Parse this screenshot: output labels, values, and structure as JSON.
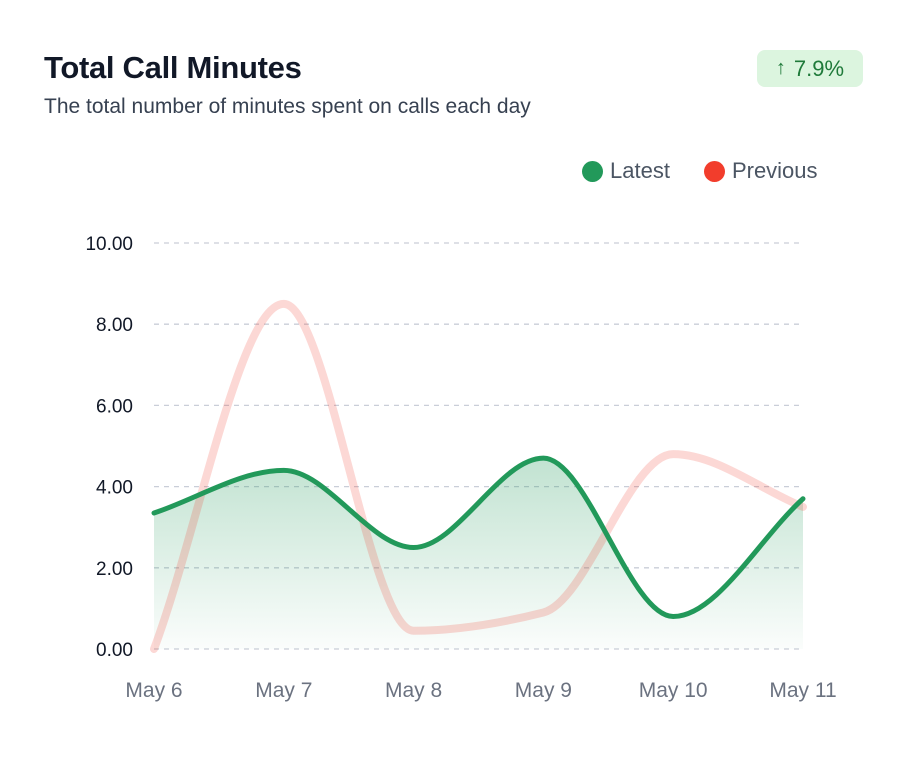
{
  "header": {
    "title": "Total Call Minutes",
    "subtitle": "The total number of minutes spent on calls each day",
    "badge_arrow": "↑",
    "badge_value": "7.9%"
  },
  "colors": {
    "latest": "#22995a",
    "previous": "#f23d2c",
    "badge_bg": "#dcf5df",
    "badge_text": "#1f7a3a"
  },
  "chart_data": {
    "type": "area",
    "categories": [
      "May 6",
      "May 7",
      "May 8",
      "May 9",
      "May 10",
      "May 11"
    ],
    "series": [
      {
        "name": "Latest",
        "values": [
          3.35,
          4.4,
          2.5,
          4.7,
          0.8,
          3.7
        ]
      },
      {
        "name": "Previous",
        "values": [
          0.0,
          8.5,
          0.45,
          0.9,
          4.8,
          3.5
        ]
      }
    ],
    "ylim": [
      0,
      10
    ],
    "yticks": [
      "0.00",
      "2.00",
      "4.00",
      "6.00",
      "8.00",
      "10.00"
    ],
    "legend": "top-right",
    "grid": true
  }
}
